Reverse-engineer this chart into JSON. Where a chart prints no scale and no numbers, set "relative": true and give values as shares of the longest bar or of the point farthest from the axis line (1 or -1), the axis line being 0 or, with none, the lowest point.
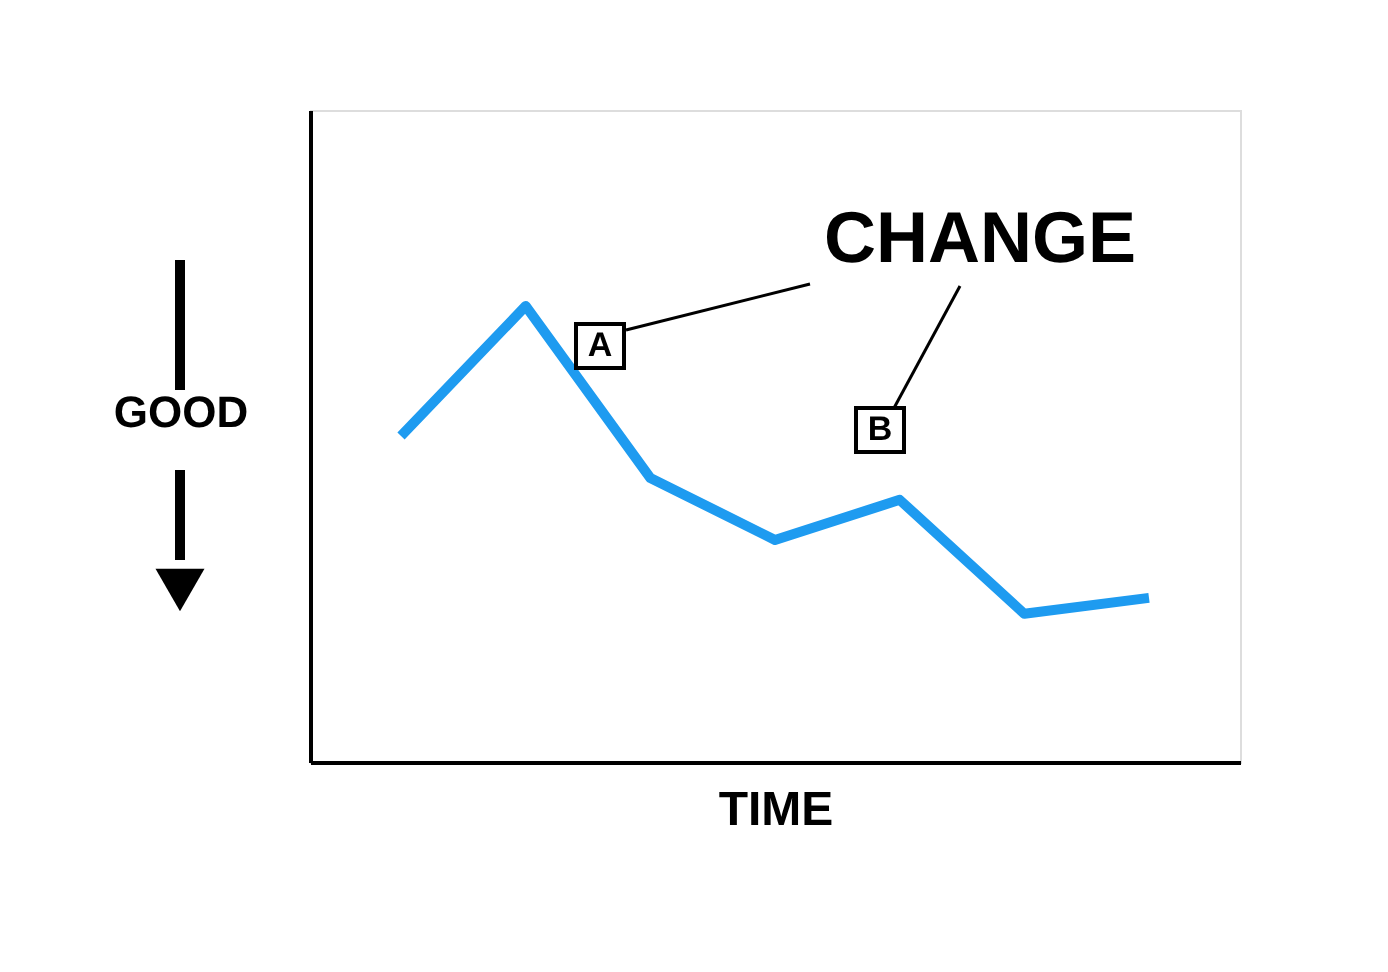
{
  "chart_data": {
    "type": "line",
    "relative": true,
    "xlabel": "TIME",
    "ylabel": "GOOD",
    "categories": [
      null,
      null,
      null,
      null,
      null,
      null,
      null
    ],
    "series": [
      {
        "color": "#1e9bf0",
        "values": [
          0.715,
          1,
          0.623,
          0.487,
          0.575,
          0.325,
          0.36
        ]
      }
    ],
    "annotations": [
      "CHANGE",
      "A",
      "B"
    ],
    "tick_labels": false,
    "grid": false,
    "marker": "none",
    "line_style": "solid"
  }
}
